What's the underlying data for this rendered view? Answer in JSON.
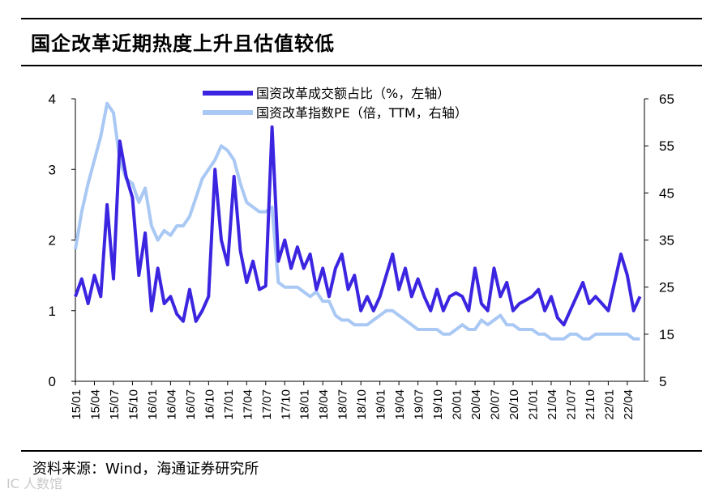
{
  "title": "国企改革近期热度上升且估值较低",
  "source": "资料来源：Wind，海通证券研究所",
  "watermark": "IC 人数馆",
  "colors": {
    "primary": "#3b25e0",
    "secondary": "#a9c8f4"
  },
  "chart_data": {
    "type": "line",
    "title": "国企改革近期热度上升且估值较低",
    "x_ticks": [
      "15/01",
      "15/04",
      "15/07",
      "15/10",
      "16/01",
      "16/04",
      "16/07",
      "16/10",
      "17/01",
      "17/04",
      "17/07",
      "17/10",
      "18/01",
      "18/04",
      "18/07",
      "18/10",
      "19/01",
      "19/04",
      "19/07",
      "19/10",
      "20/01",
      "20/04",
      "20/07",
      "20/10",
      "21/01",
      "21/04",
      "21/07",
      "21/10",
      "22/01",
      "22/04"
    ],
    "x_range": [
      "2015-01",
      "2022-06"
    ],
    "y_left": {
      "ticks": [
        "0",
        "1",
        "2",
        "3",
        "4"
      ],
      "lim": [
        0,
        4
      ]
    },
    "y_right": {
      "ticks": [
        "5",
        "15",
        "25",
        "35",
        "45",
        "55",
        "65"
      ],
      "lim": [
        5,
        65
      ]
    },
    "series": [
      {
        "name": "国资改革成交额占比（%，左轴）",
        "axis": "left",
        "color": "#3b25e0",
        "x": [
          "15/01",
          "15/02",
          "15/03",
          "15/04",
          "15/05",
          "15/06",
          "15/07",
          "15/08",
          "15/09",
          "15/10",
          "15/11",
          "15/12",
          "16/01",
          "16/02",
          "16/03",
          "16/04",
          "16/05",
          "16/06",
          "16/07",
          "16/08",
          "16/09",
          "16/10",
          "16/11",
          "16/12",
          "17/01",
          "17/02",
          "17/03",
          "17/04",
          "17/05",
          "17/06",
          "17/07",
          "17/08",
          "17/09",
          "17/10",
          "17/11",
          "17/12",
          "18/01",
          "18/02",
          "18/03",
          "18/04",
          "18/05",
          "18/06",
          "18/07",
          "18/08",
          "18/09",
          "18/10",
          "18/11",
          "18/12",
          "19/01",
          "19/02",
          "19/03",
          "19/04",
          "19/05",
          "19/06",
          "19/07",
          "19/08",
          "19/09",
          "19/10",
          "19/11",
          "19/12",
          "20/01",
          "20/02",
          "20/03",
          "20/04",
          "20/05",
          "20/06",
          "20/07",
          "20/08",
          "20/09",
          "20/10",
          "20/11",
          "20/12",
          "21/01",
          "21/02",
          "21/03",
          "21/04",
          "21/05",
          "21/06",
          "21/07",
          "21/08",
          "21/09",
          "21/10",
          "21/11",
          "21/12",
          "22/01",
          "22/02",
          "22/03",
          "22/04",
          "22/05",
          "22/06"
        ],
        "values": [
          1.2,
          1.45,
          1.1,
          1.5,
          1.2,
          2.5,
          1.45,
          3.4,
          2.9,
          2.6,
          1.5,
          2.1,
          1.0,
          1.6,
          1.1,
          1.2,
          0.95,
          0.85,
          1.3,
          0.85,
          1.0,
          1.2,
          3.0,
          2.0,
          1.65,
          2.9,
          1.85,
          1.4,
          1.7,
          1.3,
          1.35,
          3.6,
          1.7,
          2.0,
          1.6,
          1.9,
          1.6,
          1.8,
          1.3,
          1.6,
          1.2,
          1.6,
          1.8,
          1.3,
          1.5,
          1.0,
          1.2,
          1.0,
          1.2,
          1.5,
          1.8,
          1.3,
          1.6,
          1.2,
          1.45,
          1.2,
          1.0,
          1.3,
          1.0,
          1.2,
          1.25,
          1.2,
          1.0,
          1.6,
          1.1,
          1.0,
          1.6,
          1.2,
          1.4,
          1.0,
          1.1,
          1.15,
          1.2,
          1.3,
          1.0,
          1.2,
          0.9,
          0.8,
          1.0,
          1.2,
          1.4,
          1.1,
          1.2,
          1.1,
          1.0,
          1.4,
          1.8,
          1.5,
          1.0,
          1.2
        ]
      },
      {
        "name": "国资改革指数PE（倍，TTM，右轴）",
        "axis": "right",
        "color": "#a9c8f4",
        "x": [
          "15/01",
          "15/02",
          "15/03",
          "15/04",
          "15/05",
          "15/06",
          "15/07",
          "15/08",
          "15/09",
          "15/10",
          "15/11",
          "15/12",
          "16/01",
          "16/02",
          "16/03",
          "16/04",
          "16/05",
          "16/06",
          "16/07",
          "16/08",
          "16/09",
          "16/10",
          "16/11",
          "16/12",
          "17/01",
          "17/02",
          "17/03",
          "17/04",
          "17/05",
          "17/06",
          "17/07",
          "17/08",
          "17/09",
          "17/10",
          "17/11",
          "17/12",
          "18/01",
          "18/02",
          "18/03",
          "18/04",
          "18/05",
          "18/06",
          "18/07",
          "18/08",
          "18/09",
          "18/10",
          "18/11",
          "18/12",
          "19/01",
          "19/02",
          "19/03",
          "19/04",
          "19/05",
          "19/06",
          "19/07",
          "19/08",
          "19/09",
          "19/10",
          "19/11",
          "19/12",
          "20/01",
          "20/02",
          "20/03",
          "20/04",
          "20/05",
          "20/06",
          "20/07",
          "20/08",
          "20/09",
          "20/10",
          "20/11",
          "20/12",
          "21/01",
          "21/02",
          "21/03",
          "21/04",
          "21/05",
          "21/06",
          "21/07",
          "21/08",
          "21/09",
          "21/10",
          "21/11",
          "21/12",
          "22/01",
          "22/02",
          "22/03",
          "22/04",
          "22/05",
          "22/06"
        ],
        "values": [
          33,
          41,
          47,
          52,
          57,
          64,
          62,
          52,
          48,
          47,
          43,
          46,
          38,
          35,
          37,
          36,
          38,
          38,
          40,
          44,
          48,
          50,
          52,
          55,
          54,
          52,
          47,
          43,
          42,
          41,
          41,
          42,
          26,
          25,
          25,
          25,
          24,
          23,
          24,
          22,
          22,
          19,
          18,
          18,
          17,
          17,
          17,
          18,
          19,
          20,
          20,
          19,
          18,
          17,
          16,
          16,
          16,
          16,
          15,
          15,
          16,
          17,
          16,
          16,
          18,
          17,
          18,
          19,
          17,
          17,
          16,
          16,
          16,
          15,
          15,
          14,
          14,
          14,
          15,
          15,
          14,
          14,
          15,
          15,
          15,
          15,
          15,
          15,
          14,
          14
        ]
      }
    ]
  }
}
